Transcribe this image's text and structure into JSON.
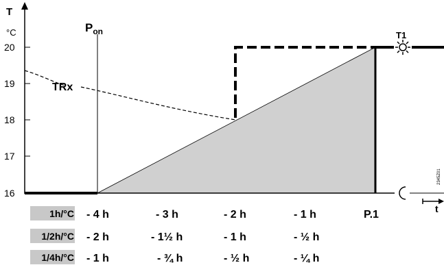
{
  "axes": {
    "y_symbol": "T",
    "y_unit": "°C",
    "y_ticks": [
      "20",
      "19",
      "18",
      "17",
      "16"
    ],
    "x_symbol": "t"
  },
  "labels": {
    "pon_main": "P",
    "pon_sub": "on",
    "trx": "TRx",
    "t1": "T1",
    "sidebar_code": "2345Z01"
  },
  "rows": [
    {
      "label": "1h/°C",
      "values": [
        "- 4 h",
        "- 3  h",
        "- 2 h",
        "- 1 h",
        "P.1"
      ]
    },
    {
      "label": "1/2h/°C",
      "values": [
        "- 2 h",
        "- 1½ h",
        "- 1 h",
        "- ½ h"
      ]
    },
    {
      "label": "1/4h/°C",
      "values": [
        "- 1 h",
        "- ¾ h",
        "- ½ h",
        "- ¼ h"
      ]
    }
  ],
  "colors": {
    "ramp_fill": "#d0d0d0",
    "row_label_bg": "#c8c8c8",
    "line": "#000000"
  },
  "icons": {
    "comfort": "sun-icon",
    "economy": "moon-icon"
  }
}
